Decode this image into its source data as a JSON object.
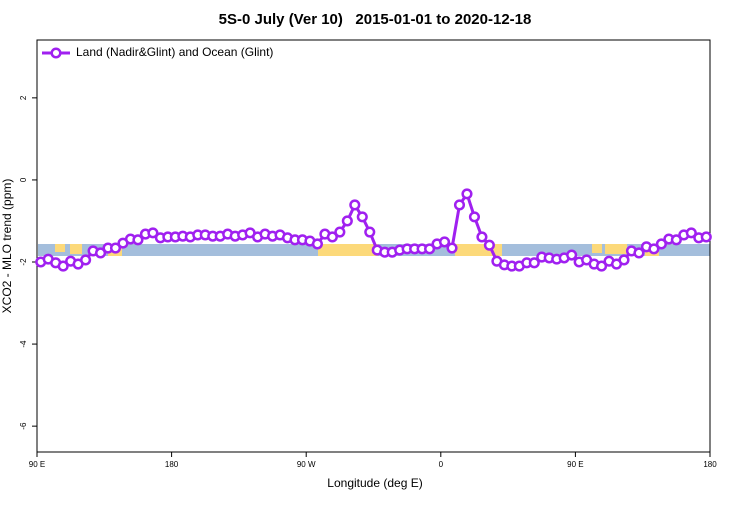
{
  "chart_data": {
    "type": "line",
    "title": "5S-0 July (Ver 10)   2015-01-01 to 2020-12-18",
    "xlabel": "Longitude (deg E)",
    "ylabel": "XCO2 - MLO trend (ppm)",
    "xlim": [
      90,
      540
    ],
    "xticks": [
      {
        "value": 90,
        "label": "90 E"
      },
      {
        "value": 180,
        "label": "180"
      },
      {
        "value": 270,
        "label": "90 W"
      },
      {
        "value": 360,
        "label": "0"
      },
      {
        "value": 450,
        "label": "90 E"
      },
      {
        "value": 540,
        "label": "180"
      }
    ],
    "ylim": [
      -6.63,
      3.41
    ],
    "yticks": [
      2,
      0,
      -2,
      -4,
      -6
    ],
    "legend": "upper left",
    "x": [
      92.5,
      97.5,
      102.5,
      107.5,
      112.5,
      117.5,
      122.5,
      127.5,
      132.5,
      137.5,
      142.5,
      147.5,
      152.5,
      157.5,
      162.5,
      167.5,
      172.5,
      177.5,
      182.5,
      187.5,
      192.5,
      197.5,
      202.5,
      207.5,
      212.5,
      217.5,
      222.5,
      227.5,
      232.5,
      237.5,
      242.5,
      247.5,
      252.5,
      257.5,
      262.5,
      267.5,
      272.5,
      277.5,
      282.5,
      287.5,
      292.5,
      297.5,
      302.5,
      307.5,
      312.5,
      317.5,
      322.5,
      327.5,
      332.5,
      337.5,
      342.5,
      347.5,
      352.5,
      357.5,
      362.5,
      367.5,
      372.5,
      377.5,
      382.5,
      387.5,
      392.5,
      397.5,
      402.5,
      407.5,
      412.5,
      417.5,
      422.5,
      427.5,
      432.5,
      437.5,
      442.5,
      447.5,
      452.5,
      457.5,
      462.5,
      467.5,
      472.5,
      477.5,
      482.5,
      487.5,
      492.5,
      497.5,
      502.5,
      507.5,
      512.5,
      517.5,
      522.5,
      527.5,
      532.5,
      537.5
    ],
    "series": [
      {
        "name": "Land (Nadir&Glint) and Ocean (Glint)",
        "color": "#a020f0",
        "values": [
          -2.0,
          -1.93,
          -2.02,
          -2.1,
          -1.98,
          -2.05,
          -1.95,
          -1.73,
          -1.78,
          -1.66,
          -1.66,
          -1.54,
          -1.44,
          -1.46,
          -1.32,
          -1.29,
          -1.41,
          -1.39,
          -1.39,
          -1.37,
          -1.39,
          -1.34,
          -1.34,
          -1.37,
          -1.37,
          -1.32,
          -1.37,
          -1.34,
          -1.29,
          -1.39,
          -1.32,
          -1.37,
          -1.34,
          -1.41,
          -1.46,
          -1.46,
          -1.49,
          -1.56,
          -1.32,
          -1.39,
          -1.27,
          -1.0,
          -0.61,
          -0.9,
          -1.27,
          -1.71,
          -1.76,
          -1.76,
          -1.71,
          -1.68,
          -1.68,
          -1.68,
          -1.68,
          -1.56,
          -1.51,
          -1.66,
          -0.61,
          -0.34,
          -0.9,
          -1.39,
          -1.59,
          -1.98,
          -2.07,
          -2.1,
          -2.1,
          -2.02,
          -2.02,
          -1.88,
          -1.9,
          -1.93,
          -1.9,
          -1.83,
          -2.0,
          -1.95,
          -2.05,
          -2.1,
          -1.98,
          -2.05,
          -1.95,
          -1.73,
          -1.78,
          -1.63,
          -1.68,
          -1.56,
          -1.44,
          -1.46,
          -1.34,
          -1.29,
          -1.41,
          -1.39
        ]
      }
    ]
  }
}
